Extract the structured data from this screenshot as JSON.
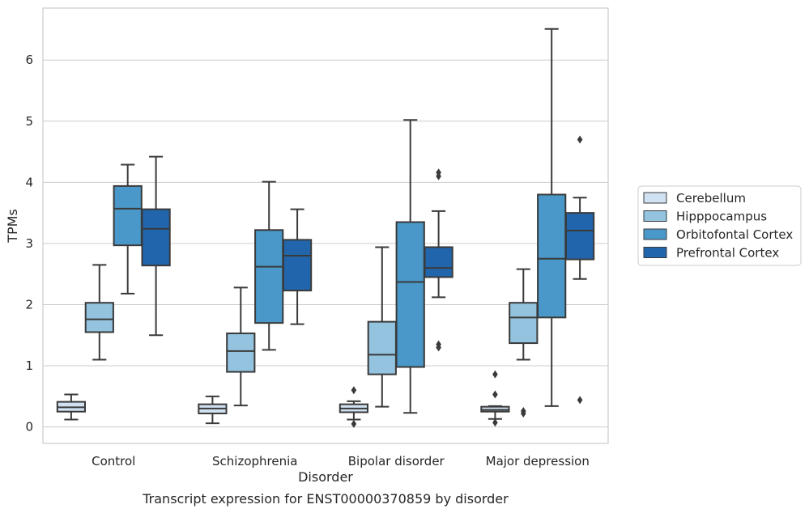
{
  "colors": {
    "Cerebellum": "#d0e1f2",
    "Hipppocampus": "#93c3df",
    "Orbitofontal Cortex": "#4a98c9",
    "Prefrontal Cortex": "#2166ac",
    "line": "#3a3a3a",
    "grid": "#cccccc",
    "frame": "#cccccc"
  },
  "caption": "Transcript expression for ENST00000370859 by disorder",
  "chart_data": {
    "type": "box",
    "title": "",
    "xlabel": "Disorder",
    "ylabel": "TPMs",
    "ylim": [
      -0.27,
      6.85
    ],
    "yticks": [
      0,
      1,
      2,
      3,
      4,
      5,
      6
    ],
    "grid": "horizontal",
    "legend_position": "right",
    "categories": [
      "Control",
      "Schizophrenia",
      "Bipolar disorder",
      "Major depression"
    ],
    "series": [
      {
        "name": "Cerebellum",
        "boxes": [
          {
            "whislo": 0.12,
            "q1": 0.25,
            "med": 0.32,
            "q3": 0.41,
            "whishi": 0.53,
            "fliers": []
          },
          {
            "whislo": 0.06,
            "q1": 0.22,
            "med": 0.3,
            "q3": 0.37,
            "whishi": 0.5,
            "fliers": []
          },
          {
            "whislo": 0.12,
            "q1": 0.24,
            "med": 0.3,
            "q3": 0.37,
            "whishi": 0.42,
            "fliers": [
              0.6,
              0.05
            ]
          },
          {
            "whislo": 0.13,
            "q1": 0.25,
            "med": 0.28,
            "q3": 0.33,
            "whishi": 0.34,
            "fliers": [
              0.86,
              0.53,
              0.07
            ]
          }
        ]
      },
      {
        "name": "Hipppocampus",
        "boxes": [
          {
            "whislo": 1.1,
            "q1": 1.55,
            "med": 1.76,
            "q3": 2.03,
            "whishi": 2.65,
            "fliers": []
          },
          {
            "whislo": 0.35,
            "q1": 0.9,
            "med": 1.24,
            "q3": 1.53,
            "whishi": 2.28,
            "fliers": []
          },
          {
            "whislo": 0.33,
            "q1": 0.86,
            "med": 1.18,
            "q3": 1.72,
            "whishi": 2.94,
            "fliers": []
          },
          {
            "whislo": 1.1,
            "q1": 1.37,
            "med": 1.79,
            "q3": 2.03,
            "whishi": 2.58,
            "fliers": [
              0.26,
              0.22
            ]
          }
        ]
      },
      {
        "name": "Orbitofontal Cortex",
        "boxes": [
          {
            "whislo": 2.18,
            "q1": 2.97,
            "med": 3.57,
            "q3": 3.94,
            "whishi": 4.29,
            "fliers": []
          },
          {
            "whislo": 1.26,
            "q1": 1.7,
            "med": 2.62,
            "q3": 3.22,
            "whishi": 4.01,
            "fliers": []
          },
          {
            "whislo": 0.23,
            "q1": 0.98,
            "med": 2.37,
            "q3": 3.35,
            "whishi": 5.02,
            "fliers": []
          },
          {
            "whislo": 0.34,
            "q1": 1.79,
            "med": 2.75,
            "q3": 3.8,
            "whishi": 6.51,
            "fliers": []
          }
        ]
      },
      {
        "name": "Prefrontal Cortex",
        "boxes": [
          {
            "whislo": 1.5,
            "q1": 2.64,
            "med": 3.24,
            "q3": 3.56,
            "whishi": 4.42,
            "fliers": []
          },
          {
            "whislo": 1.68,
            "q1": 2.23,
            "med": 2.8,
            "q3": 3.06,
            "whishi": 3.56,
            "fliers": []
          },
          {
            "whislo": 2.12,
            "q1": 2.45,
            "med": 2.6,
            "q3": 2.94,
            "whishi": 3.53,
            "fliers": [
              4.16,
              4.1,
              1.35,
              1.3
            ]
          },
          {
            "whislo": 2.42,
            "q1": 2.74,
            "med": 3.21,
            "q3": 3.5,
            "whishi": 3.75,
            "fliers": [
              4.7,
              0.44
            ]
          }
        ]
      }
    ]
  }
}
